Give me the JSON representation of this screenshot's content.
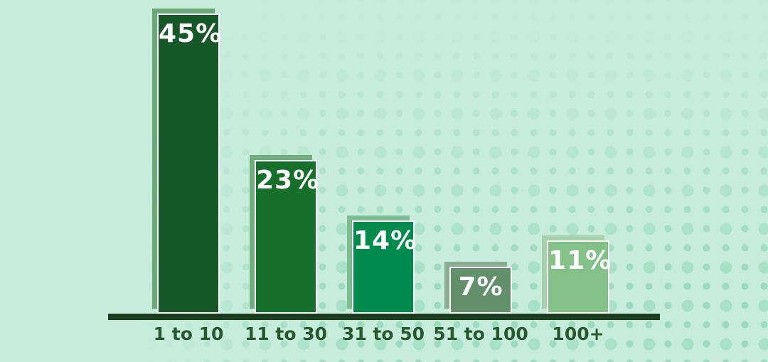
{
  "chart_data": {
    "type": "bar",
    "title": "",
    "xlabel": "",
    "ylabel": "",
    "categories": [
      "1 to 10",
      "11 to 30",
      "31 to 50",
      "51 to 100",
      "100+"
    ],
    "values": [
      45,
      23,
      14,
      7,
      11
    ],
    "value_labels": [
      "45%",
      "23%",
      "14%",
      "7%",
      "11%"
    ],
    "ylim": [
      0,
      47
    ],
    "grid": false,
    "legend": false,
    "axis_line_color": "#1b3c1d",
    "background_color": "#c7ecdb",
    "category_label_color": "#265a2e",
    "value_label_color": "#ffffff",
    "bar_colors": [
      "#165827",
      "#16702b",
      "#008a4b",
      "#61906a",
      "#84c189"
    ],
    "bar_echo_colors": [
      "#6ca779",
      "#6fae7c",
      "#7cbe92",
      "#88ad8f",
      "#a7d1a9"
    ],
    "bar_border_color": "#ffffff"
  }
}
